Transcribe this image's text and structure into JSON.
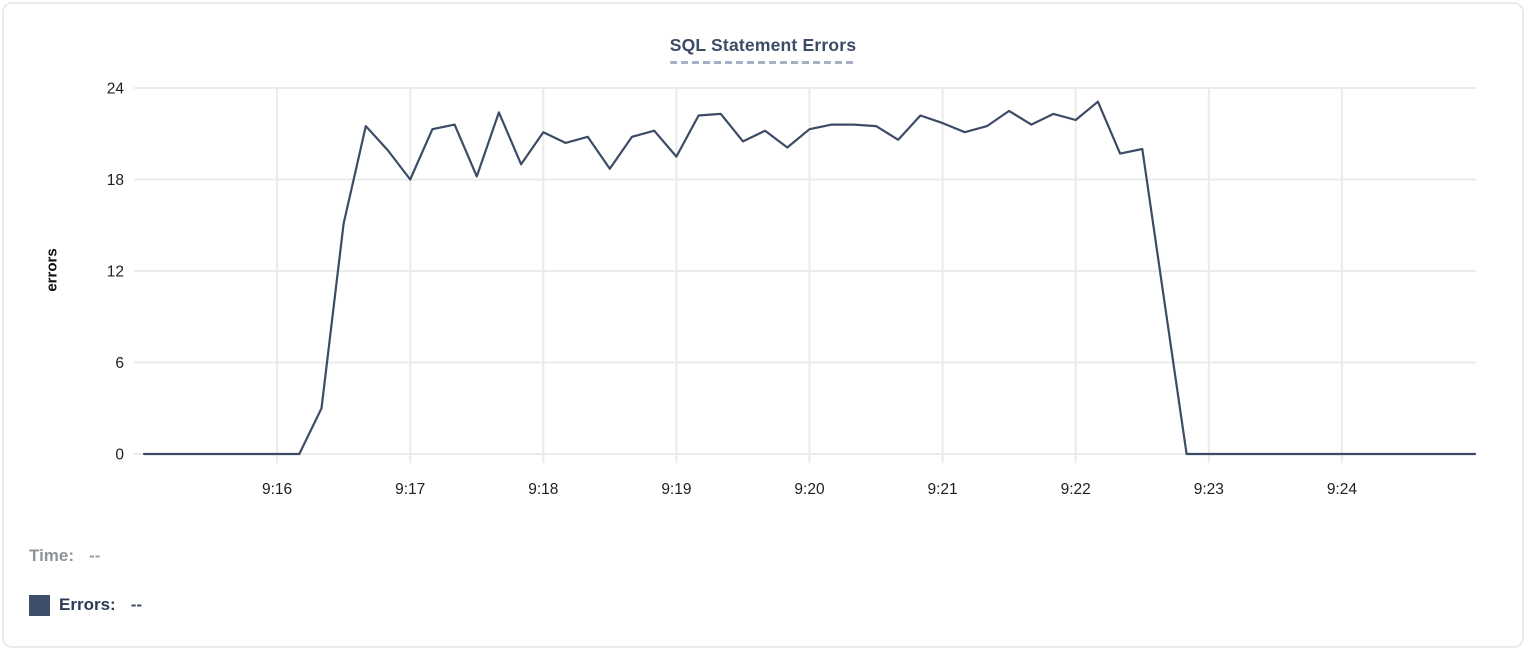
{
  "chart": {
    "title": "SQL Statement Errors",
    "y_axis_label": "errors"
  },
  "tooltip": {
    "time_label": "Time:",
    "time_value": "--",
    "errors_label": "Errors:",
    "errors_value": "--"
  },
  "colors": {
    "line": "#3c4c66",
    "legend_swatch": "#3e4e68",
    "title": "#3d4c66",
    "title_underline": "#a6b1c6",
    "grid": "#ebebeb",
    "tick_text": "#202020",
    "time_label": "#8e9299",
    "errors_label": "#2c3c55",
    "card_border": "#eaeaec"
  },
  "chart_data": {
    "type": "line",
    "title": "SQL Statement Errors",
    "xlabel": "",
    "ylabel": "errors",
    "ylim": [
      0,
      24
    ],
    "yticks": [
      0,
      6,
      12,
      18,
      24
    ],
    "xtick_labels": [
      "9:16",
      "9:17",
      "9:18",
      "9:19",
      "9:20",
      "9:21",
      "9:22",
      "9:23",
      "9:24"
    ],
    "x_range": [
      "9:15:00",
      "9:25:00"
    ],
    "interval_seconds": 10,
    "grid": true,
    "legend_position": "below-left",
    "series": [
      {
        "name": "Errors",
        "x": [
          "9:15:00",
          "9:15:10",
          "9:15:20",
          "9:15:30",
          "9:15:40",
          "9:15:50",
          "9:16:00",
          "9:16:10",
          "9:16:20",
          "9:16:30",
          "9:16:40",
          "9:16:50",
          "9:17:00",
          "9:17:10",
          "9:17:20",
          "9:17:30",
          "9:17:40",
          "9:17:50",
          "9:18:00",
          "9:18:10",
          "9:18:20",
          "9:18:30",
          "9:18:40",
          "9:18:50",
          "9:19:00",
          "9:19:10",
          "9:19:20",
          "9:19:30",
          "9:19:40",
          "9:19:50",
          "9:20:00",
          "9:20:10",
          "9:20:20",
          "9:20:30",
          "9:20:40",
          "9:20:50",
          "9:21:00",
          "9:21:10",
          "9:21:20",
          "9:21:30",
          "9:21:40",
          "9:21:50",
          "9:22:00",
          "9:22:10",
          "9:22:20",
          "9:22:30",
          "9:22:40",
          "9:22:50",
          "9:23:00",
          "9:23:10",
          "9:23:20",
          "9:23:30",
          "9:23:40",
          "9:23:50",
          "9:24:00",
          "9:24:10",
          "9:24:20",
          "9:24:30",
          "9:24:40",
          "9:24:50",
          "9:25:00"
        ],
        "values": [
          0,
          0,
          0,
          0,
          0,
          0,
          0,
          0,
          3,
          15.1,
          21.5,
          19.9,
          18,
          21.3,
          21.6,
          18.2,
          22.4,
          19,
          21.1,
          20.4,
          20.8,
          18.7,
          20.8,
          21.2,
          19.5,
          22.2,
          22.3,
          20.5,
          21.2,
          20.1,
          21.3,
          21.6,
          21.6,
          21.5,
          20.6,
          22.2,
          21.7,
          21.1,
          21.5,
          22.5,
          21.6,
          22.3,
          21.9,
          23.1,
          19.7,
          20,
          10,
          0,
          0,
          0,
          0,
          0,
          0,
          0,
          0,
          0,
          0,
          0,
          0,
          0,
          0
        ]
      }
    ]
  }
}
